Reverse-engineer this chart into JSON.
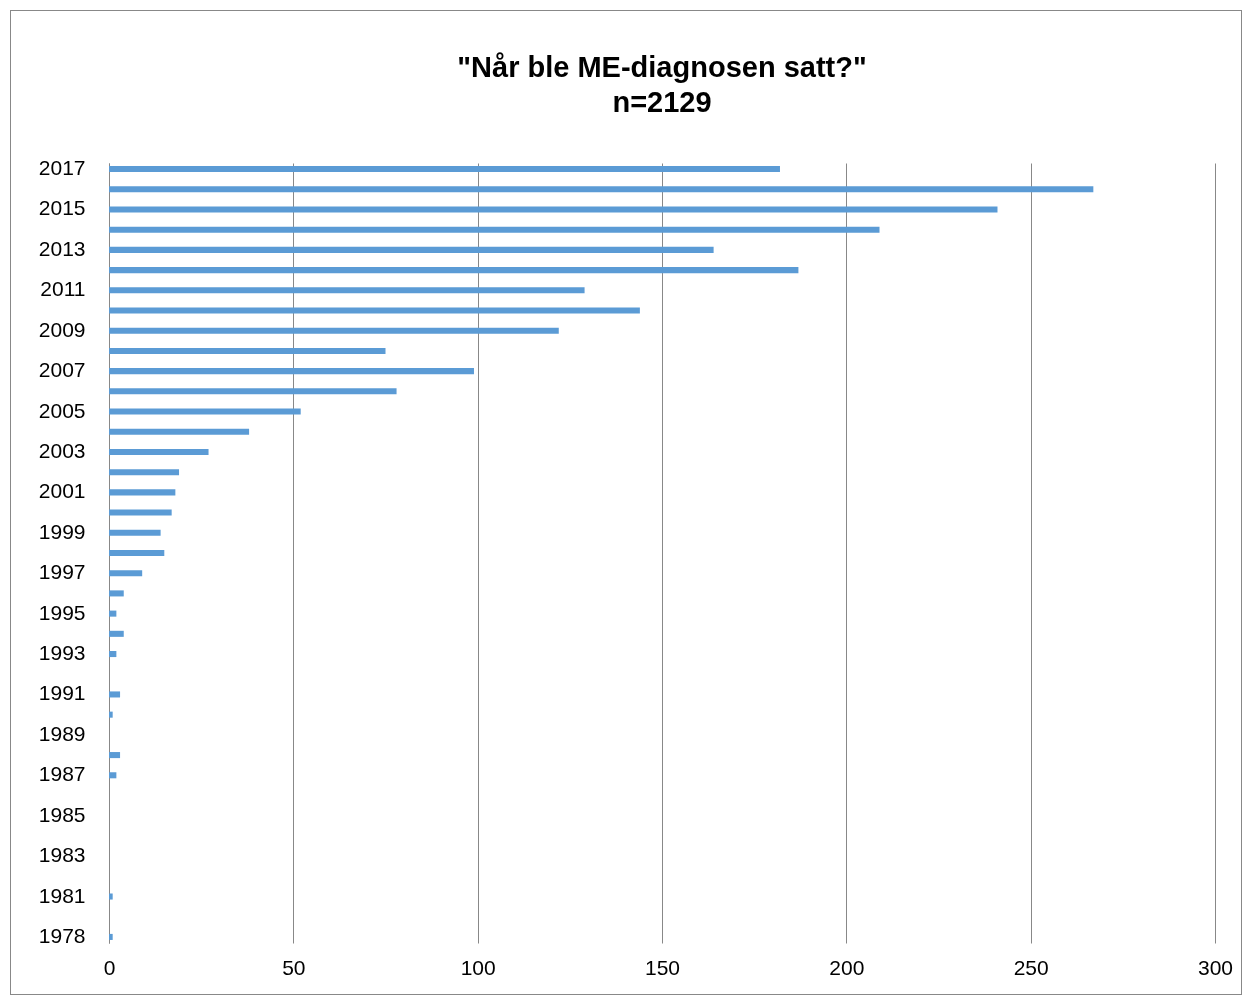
{
  "chart_data": {
    "type": "bar",
    "orientation": "horizontal",
    "title": "\"Når ble ME-diagnosen satt?\"",
    "subtitle": "n=2129",
    "categories": [
      "2017",
      null,
      "2015",
      null,
      "2013",
      null,
      "2011",
      null,
      "2009",
      null,
      "2007",
      null,
      "2005",
      null,
      "2003",
      null,
      "2001",
      null,
      "1999",
      null,
      "1997",
      null,
      "1995",
      null,
      "1993",
      null,
      "1991",
      null,
      "1989",
      null,
      "1987",
      null,
      "1985",
      null,
      "1983",
      null,
      "1981",
      null,
      "1978"
    ],
    "values": [
      182,
      267,
      241,
      209,
      164,
      187,
      129,
      144,
      122,
      75,
      99,
      78,
      52,
      38,
      27,
      19,
      18,
      17,
      14,
      15,
      9,
      4,
      2,
      4,
      2,
      0,
      3,
      1,
      0,
      3,
      2,
      0,
      0,
      0,
      0,
      0,
      1,
      0,
      1
    ],
    "color": "#5b9bd5",
    "xlim": [
      0,
      300
    ],
    "xticks": [
      0,
      50,
      100,
      150,
      200,
      250,
      300
    ],
    "grid": "x"
  }
}
